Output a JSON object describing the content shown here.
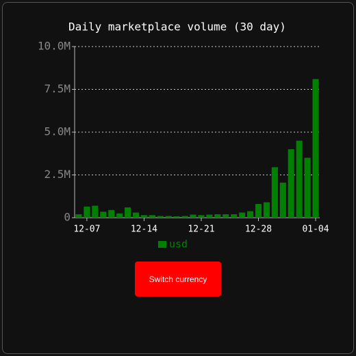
{
  "chart_data": {
    "type": "bar",
    "title": "Daily marketplace volume (30 day)",
    "categories": [
      null,
      "12-07",
      null,
      null,
      null,
      null,
      null,
      null,
      "12-14",
      null,
      null,
      null,
      null,
      null,
      null,
      "12-21",
      null,
      null,
      null,
      null,
      null,
      null,
      "12-28",
      null,
      null,
      null,
      null,
      null,
      null,
      "01-04"
    ],
    "series": [
      {
        "name": "usd",
        "color": "#008000",
        "values": [
          200000,
          650000,
          700000,
          350000,
          450000,
          250000,
          600000,
          300000,
          150000,
          150000,
          100000,
          100000,
          80000,
          100000,
          180000,
          150000,
          180000,
          200000,
          200000,
          200000,
          300000,
          380000,
          800000,
          900000,
          2950000,
          2050000,
          4000000,
          4500000,
          3500000,
          8100000
        ]
      }
    ],
    "ylim": [
      0,
      10000000
    ],
    "yticks": [
      0,
      {
        "value": 2500000,
        "label": "2.5M"
      },
      {
        "value": 5000000,
        "label": "5.0M"
      },
      {
        "value": 7500000,
        "label": "7.5M"
      },
      {
        "value": 10000000,
        "label": "10.0M"
      }
    ],
    "grid": true
  },
  "button": {
    "label": "Switch currency"
  }
}
